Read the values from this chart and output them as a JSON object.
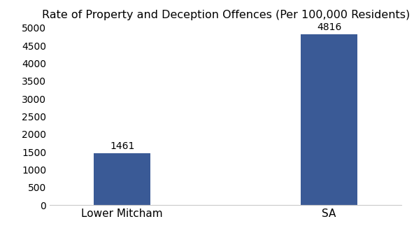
{
  "categories": [
    "Lower Mitcham",
    "SA"
  ],
  "values": [
    1461,
    4816
  ],
  "bar_colors": [
    "#3a5a96",
    "#3a5a96"
  ],
  "title": "Rate of Property and Deception Offences (Per 100,000 Residents)",
  "title_fontsize": 11.5,
  "ylim": [
    0,
    5000
  ],
  "yticks": [
    0,
    500,
    1000,
    1500,
    2000,
    2500,
    3000,
    3500,
    4000,
    4500,
    5000
  ],
  "bar_width": 0.55,
  "background_color": "#ffffff",
  "tick_fontsize": 10,
  "value_label_fontsize": 10,
  "xlabel_fontsize": 11
}
